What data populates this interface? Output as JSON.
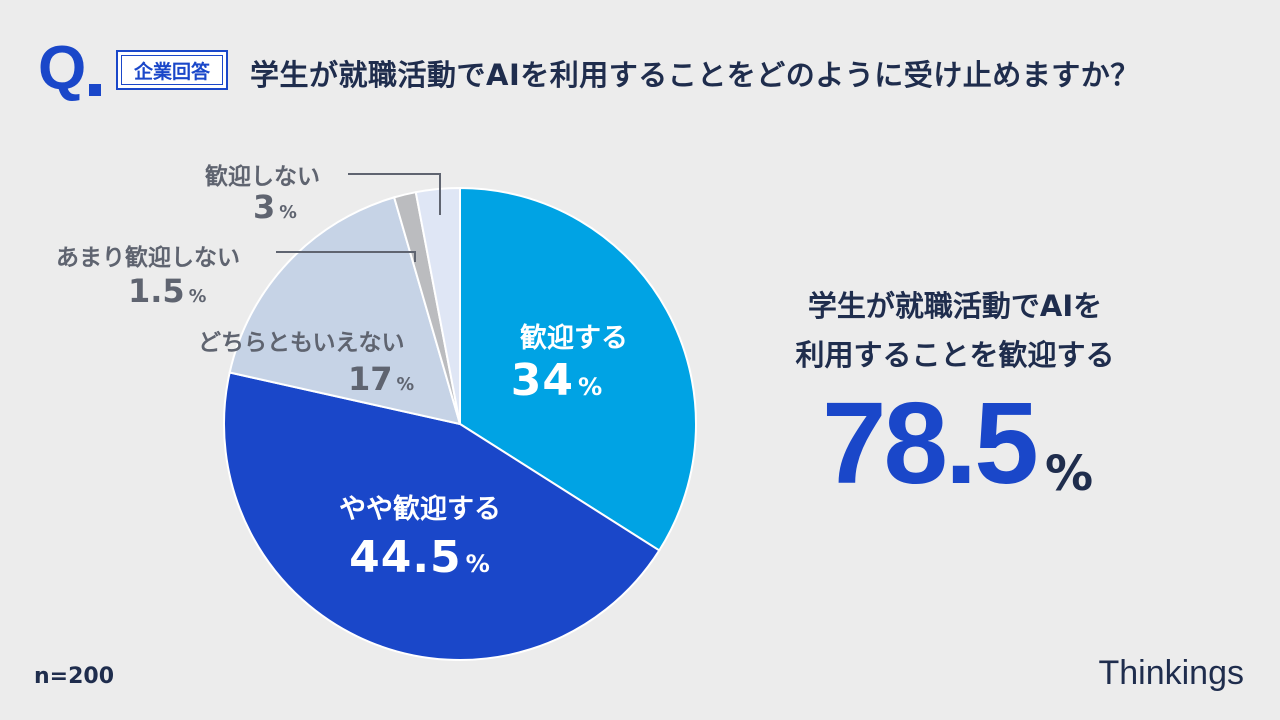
{
  "header": {
    "q_mark": "Q",
    "badge": "企業回答",
    "question": "学生が就職活動でAIを利用することをどのように受け止めますか？"
  },
  "chart_data": {
    "type": "pie",
    "start": "12 o'clock",
    "direction": "clockwise",
    "slices": [
      {
        "label": "歓迎する",
        "value": 34,
        "value_text": "34",
        "color": "#00a3e4"
      },
      {
        "label": "やや歓迎する",
        "value": 44.5,
        "value_text": "44.5",
        "color": "#1a47c9"
      },
      {
        "label": "どちらともいえない",
        "value": 17,
        "value_text": "17",
        "color": "#c6d3e6"
      },
      {
        "label": "あまり歓迎しない",
        "value": 1.5,
        "value_text": "1.5",
        "color": "#bbbcbf"
      },
      {
        "label": "歓迎しない",
        "value": 3,
        "value_text": "3",
        "color": "#dfe6f5"
      }
    ],
    "unit": "%"
  },
  "summary": {
    "line1": "学生が就職活動でAIを",
    "line2": "利用することを歓迎する",
    "value": "78.5",
    "unit": "%"
  },
  "footer": {
    "sample": "n=200",
    "brand": "Thinkings"
  }
}
